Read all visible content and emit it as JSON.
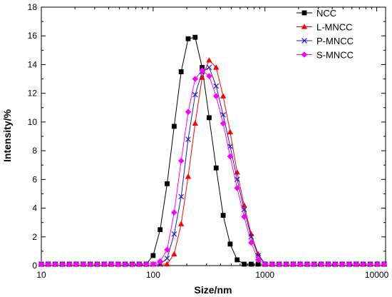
{
  "chart_data": {
    "type": "line",
    "xlabel": "Size/nm",
    "ylabel": "Intensity/%",
    "xscale": "log",
    "xlim": [
      10,
      12000
    ],
    "ylim": [
      0,
      18
    ],
    "x_ticks": [
      10,
      100,
      1000,
      10000
    ],
    "x_tick_labels": [
      "10",
      "100",
      "1000",
      "10000"
    ],
    "y_ticks": [
      0,
      2,
      4,
      6,
      8,
      10,
      12,
      14,
      16,
      18
    ],
    "y_tick_labels": [
      "0",
      "2",
      "4",
      "6",
      "8",
      "10",
      "12",
      "14",
      "16",
      "18"
    ],
    "legend_position": "top-right",
    "x": [
      10,
      11.5,
      13.3,
      15.4,
      17.8,
      20.5,
      23.7,
      27.4,
      31.6,
      36.5,
      42.2,
      48.7,
      56.2,
      65,
      75,
      86.7,
      100,
      115.5,
      133.4,
      154.2,
      178.1,
      205.7,
      237.6,
      274.4,
      317,
      366.2,
      423,
      488.6,
      564.4,
      651.9,
      753,
      869.8,
      1004.7,
      1160.5,
      1340.6,
      1548.5,
      1788.7,
      2066.2,
      2386.7,
      2757,
      3184.6,
      3678.7,
      4249.3,
      4908.5,
      5669.9,
      6549.4,
      7565.3,
      8738.8,
      10094.4,
      11660.3
    ],
    "series": [
      {
        "name": "NCC",
        "color": "#000000",
        "marker": "square",
        "values": [
          0.1,
          0.1,
          0.1,
          0.1,
          0.1,
          0.1,
          0.1,
          0.1,
          0.1,
          0.1,
          0.1,
          0.1,
          0.1,
          0.1,
          0.1,
          0.1,
          0.7,
          2.5,
          5.7,
          9.7,
          13.5,
          15.8,
          15.9,
          13.8,
          10.3,
          6.8,
          3.5,
          1.5,
          0.4,
          0.1,
          0.1,
          0.1,
          0.1,
          0.1,
          0.1,
          0.1,
          0.1,
          0.1,
          0.1,
          0.1,
          0.1,
          0.1,
          0.1,
          0.1,
          0.1,
          0.1,
          0.1,
          0.1,
          0.1,
          0.1
        ]
      },
      {
        "name": "L-MNCC",
        "color": "#ff0000",
        "marker": "triangle",
        "values": [
          0.1,
          0.1,
          0.1,
          0.1,
          0.1,
          0.1,
          0.1,
          0.1,
          0.1,
          0.1,
          0.1,
          0.1,
          0.1,
          0.1,
          0.1,
          0.1,
          0.1,
          0.1,
          0.1,
          0.8,
          2.9,
          6.2,
          9.9,
          13.1,
          14.3,
          13.8,
          11.8,
          9.3,
          6.5,
          4.2,
          2.2,
          0.8,
          0.1,
          0.1,
          0.1,
          0.1,
          0.1,
          0.1,
          0.1,
          0.1,
          0.1,
          0.1,
          0.1,
          0.1,
          0.1,
          0.1,
          0.1,
          0.1,
          0.1,
          0.1
        ]
      },
      {
        "name": "P-MNCC",
        "color": "#1a1acc",
        "marker": "x",
        "values": [
          0.1,
          0.1,
          0.1,
          0.1,
          0.1,
          0.1,
          0.1,
          0.1,
          0.1,
          0.1,
          0.1,
          0.1,
          0.1,
          0.1,
          0.1,
          0.1,
          0.1,
          0.1,
          0.5,
          2.2,
          4.8,
          8.8,
          11.9,
          13.5,
          13.8,
          12.5,
          10.5,
          8.3,
          6.0,
          3.9,
          2.0,
          0.7,
          0.1,
          0.1,
          0.1,
          0.1,
          0.1,
          0.1,
          0.1,
          0.1,
          0.1,
          0.1,
          0.1,
          0.1,
          0.1,
          0.1,
          0.1,
          0.1,
          0.1,
          0.1
        ]
      },
      {
        "name": "S-MNCC",
        "color": "#ff00ff",
        "marker": "diamond",
        "values": [
          0.1,
          0.1,
          0.1,
          0.1,
          0.1,
          0.1,
          0.1,
          0.1,
          0.1,
          0.1,
          0.1,
          0.1,
          0.1,
          0.1,
          0.1,
          0.1,
          0.1,
          0.3,
          1.1,
          3.7,
          7.3,
          10.7,
          13.0,
          13.6,
          13.2,
          11.8,
          9.9,
          7.6,
          5.4,
          3.4,
          1.6,
          0.4,
          0.1,
          0.1,
          0.1,
          0.1,
          0.1,
          0.1,
          0.1,
          0.1,
          0.1,
          0.1,
          0.1,
          0.1,
          0.1,
          0.1,
          0.1,
          0.1,
          0.1,
          0.1
        ]
      }
    ]
  }
}
